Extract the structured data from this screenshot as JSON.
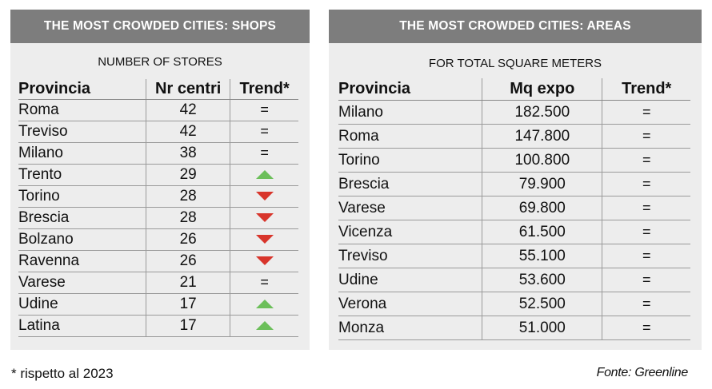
{
  "shops": {
    "title": "THE MOST CROWDED CITIES: SHOPS",
    "subtitle": "NUMBER OF STORES",
    "headers": [
      "Provincia",
      "Nr centri",
      "Trend*"
    ],
    "rows": [
      {
        "prov": "Roma",
        "val": "42",
        "trend": "equal"
      },
      {
        "prov": "Treviso",
        "val": "42",
        "trend": "equal"
      },
      {
        "prov": "Milano",
        "val": "38",
        "trend": "equal"
      },
      {
        "prov": "Trento",
        "val": "29",
        "trend": "up"
      },
      {
        "prov": "Torino",
        "val": "28",
        "trend": "down"
      },
      {
        "prov": "Brescia",
        "val": "28",
        "trend": "down"
      },
      {
        "prov": "Bolzano",
        "val": "26",
        "trend": "down"
      },
      {
        "prov": "Ravenna",
        "val": "26",
        "trend": "down"
      },
      {
        "prov": "Varese",
        "val": "21",
        "trend": "equal"
      },
      {
        "prov": "Udine",
        "val": "17",
        "trend": "up"
      },
      {
        "prov": "Latina",
        "val": "17",
        "trend": "up"
      }
    ]
  },
  "areas": {
    "title": "THE MOST CROWDED CITIES: AREAS",
    "subtitle": "FOR TOTAL SQUARE METERS",
    "headers": [
      "Provincia",
      "Mq expo",
      "Trend*"
    ],
    "rows": [
      {
        "prov": "Milano",
        "val": "182.500",
        "trend": "equal"
      },
      {
        "prov": "Roma",
        "val": "147.800",
        "trend": "equal"
      },
      {
        "prov": "Torino",
        "val": "100.800",
        "trend": "equal"
      },
      {
        "prov": "Brescia",
        "val": "79.900",
        "trend": "equal"
      },
      {
        "prov": "Varese",
        "val": "69.800",
        "trend": "equal"
      },
      {
        "prov": "Vicenza",
        "val": "61.500",
        "trend": "equal"
      },
      {
        "prov": "Treviso",
        "val": "55.100",
        "trend": "equal"
      },
      {
        "prov": "Udine",
        "val": "53.600",
        "trend": "equal"
      },
      {
        "prov": "Verona",
        "val": "52.500",
        "trend": "equal"
      },
      {
        "prov": "Monza",
        "val": "51.000",
        "trend": "equal"
      }
    ]
  },
  "equal_symbol": "=",
  "footnote": "* rispetto al 2023",
  "source": "Fonte: Greenline",
  "colors": {
    "header_bg": "#7d7d7d",
    "panel_bg": "#ededed",
    "trend_up": "#6cbf5a",
    "trend_down": "#d8352b"
  }
}
